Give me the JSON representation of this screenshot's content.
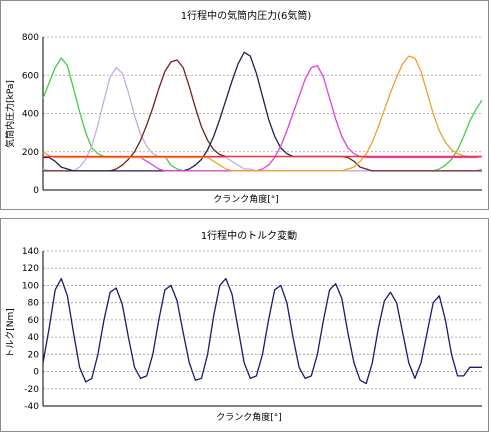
{
  "chart_data": [
    {
      "type": "line",
      "title": "1行程中の気筒内圧力(6気筒)",
      "xlabel": "クランク角度[°]",
      "ylabel": "気筒内圧力[kPa]",
      "ylim": [
        0,
        800
      ],
      "yticks": [
        0,
        200,
        400,
        600,
        800
      ],
      "grid": true,
      "x": [
        0,
        10,
        20,
        30,
        40,
        50,
        60,
        70,
        80,
        90,
        100,
        110,
        120,
        130,
        140,
        150,
        160,
        170,
        180,
        190,
        200,
        210,
        220,
        230,
        240,
        250,
        260,
        270,
        280,
        290,
        300,
        310,
        320,
        330,
        340,
        350,
        360,
        370,
        380,
        390,
        400,
        410,
        420,
        430,
        440,
        450,
        460,
        470,
        480,
        490,
        500,
        510,
        520,
        530,
        540,
        550,
        560,
        570,
        580,
        590,
        600,
        610,
        620,
        630,
        640,
        650,
        660,
        670,
        680,
        690,
        700,
        710,
        720
      ],
      "series": [
        {
          "color": "#40d040",
          "values": [
            480,
            560,
            640,
            690,
            650,
            530,
            410,
            300,
            220,
            190,
            175,
            170,
            170,
            170,
            170,
            170,
            175,
            175,
            175,
            175,
            175,
            130,
            110,
            100,
            100,
            100,
            100,
            100,
            100,
            100,
            100,
            100,
            100,
            100,
            100,
            100,
            100,
            100,
            100,
            100,
            100,
            100,
            100,
            100,
            100,
            100,
            100,
            100,
            100,
            100,
            100,
            100,
            100,
            100,
            100,
            100,
            100,
            100,
            100,
            100,
            100,
            100,
            100,
            100,
            100,
            110,
            130,
            160,
            210,
            280,
            360,
            420,
            470
          ]
        },
        {
          "color": "#c8a8e8",
          "values": [
            110,
            100,
            100,
            100,
            100,
            100,
            120,
            160,
            230,
            340,
            470,
            590,
            640,
            610,
            510,
            390,
            290,
            230,
            190,
            175,
            170,
            170,
            170,
            170,
            170,
            170,
            170,
            170,
            170,
            170,
            170,
            150,
            130,
            110,
            110,
            100,
            100,
            100,
            100,
            100,
            100,
            100,
            100,
            100,
            100,
            100,
            100,
            100,
            100,
            100,
            100,
            100,
            100,
            100,
            100,
            100,
            100,
            100,
            100,
            100,
            100,
            100,
            100,
            100,
            100,
            100,
            100,
            100,
            100,
            100,
            100,
            100,
            110
          ]
        },
        {
          "color": "#702020",
          "values": [
            100,
            100,
            100,
            100,
            100,
            100,
            100,
            100,
            100,
            100,
            100,
            100,
            110,
            130,
            160,
            200,
            260,
            340,
            430,
            530,
            620,
            670,
            680,
            640,
            540,
            430,
            330,
            260,
            210,
            185,
            175,
            175,
            175,
            175,
            175,
            175,
            175,
            175,
            175,
            175,
            175,
            175,
            175,
            175,
            175,
            175,
            175,
            175,
            175,
            175,
            170,
            150,
            120,
            110,
            100,
            100,
            100,
            100,
            100,
            100,
            100,
            100,
            100,
            100,
            100,
            100,
            100,
            100,
            100,
            100,
            100,
            100,
            100
          ]
        },
        {
          "color": "#202050",
          "values": [
            170,
            170,
            150,
            120,
            110,
            100,
            100,
            100,
            100,
            100,
            100,
            100,
            100,
            100,
            100,
            100,
            100,
            100,
            100,
            100,
            100,
            100,
            100,
            100,
            110,
            130,
            160,
            210,
            280,
            370,
            470,
            570,
            660,
            720,
            700,
            610,
            490,
            370,
            280,
            220,
            190,
            175,
            175,
            175,
            175,
            175,
            175,
            175,
            175,
            175,
            175,
            175,
            175,
            175,
            175,
            175,
            175,
            175,
            175,
            175,
            175,
            175,
            175,
            175,
            175,
            175,
            175,
            175,
            175,
            175,
            175,
            175,
            175
          ]
        },
        {
          "color": "#e040e0",
          "values": [
            175,
            175,
            175,
            175,
            175,
            175,
            175,
            175,
            175,
            175,
            175,
            175,
            175,
            175,
            175,
            170,
            170,
            150,
            130,
            110,
            100,
            100,
            100,
            100,
            100,
            100,
            100,
            100,
            100,
            100,
            100,
            100,
            100,
            100,
            100,
            100,
            110,
            130,
            170,
            230,
            310,
            400,
            490,
            580,
            640,
            650,
            590,
            480,
            370,
            280,
            220,
            190,
            175,
            170,
            170,
            170,
            170,
            170,
            170,
            170,
            170,
            170,
            170,
            170,
            170,
            170,
            170,
            170,
            170,
            170,
            170,
            170,
            175
          ]
        },
        {
          "color": "#f0a030",
          "values": [
            200,
            180,
            170,
            170,
            170,
            170,
            170,
            170,
            170,
            170,
            170,
            170,
            170,
            170,
            170,
            170,
            170,
            170,
            170,
            170,
            170,
            170,
            170,
            170,
            170,
            170,
            170,
            170,
            150,
            130,
            110,
            100,
            100,
            100,
            100,
            100,
            100,
            100,
            100,
            100,
            100,
            100,
            100,
            100,
            100,
            100,
            100,
            100,
            100,
            100,
            110,
            120,
            150,
            190,
            250,
            330,
            420,
            510,
            590,
            660,
            700,
            690,
            620,
            510,
            400,
            310,
            250,
            210,
            190,
            180,
            175,
            175,
            175
          ]
        },
        {
          "color": "#ff3030",
          "values": [
            175,
            175,
            175,
            175,
            175,
            175,
            175,
            175,
            175,
            175,
            175,
            175,
            175,
            175,
            175,
            175,
            175,
            175,
            175,
            175,
            175,
            175,
            175,
            175,
            175,
            175,
            175,
            175,
            175,
            175,
            175,
            175,
            175,
            175,
            175,
            175,
            175,
            175,
            175,
            175,
            175,
            175,
            175,
            175,
            175,
            175,
            175,
            175,
            175,
            175,
            175,
            175,
            175,
            175,
            175,
            175,
            175,
            175,
            175,
            175,
            175,
            175,
            175,
            175,
            175,
            175,
            175,
            175,
            175,
            175,
            175,
            175,
            175
          ]
        }
      ]
    },
    {
      "type": "line",
      "title": "1行程中のトルク変動",
      "xlabel": "クランク角度[°]",
      "ylabel": "トルク[Nm]",
      "ylim": [
        -40,
        140
      ],
      "yticks": [
        -40,
        -20,
        0,
        20,
        40,
        60,
        80,
        100,
        120,
        140
      ],
      "grid": true,
      "x": [
        0,
        10,
        20,
        30,
        40,
        50,
        60,
        70,
        80,
        90,
        100,
        110,
        120,
        130,
        140,
        150,
        160,
        170,
        180,
        190,
        200,
        210,
        220,
        230,
        240,
        250,
        260,
        270,
        280,
        290,
        300,
        310,
        320,
        330,
        340,
        350,
        360,
        370,
        380,
        390,
        400,
        410,
        420,
        430,
        440,
        450,
        460,
        470,
        480,
        490,
        500,
        510,
        520,
        530,
        540,
        550,
        560,
        570,
        580,
        590,
        600,
        610,
        620,
        630,
        640,
        650,
        660,
        670,
        680,
        690,
        700,
        710,
        720
      ],
      "series": [
        {
          "color": "#1a1a6e",
          "values": [
            10,
            50,
            95,
            108,
            88,
            45,
            5,
            -12,
            -8,
            20,
            60,
            92,
            97,
            78,
            40,
            5,
            -8,
            -5,
            20,
            60,
            95,
            100,
            82,
            45,
            10,
            -10,
            -8,
            20,
            65,
            100,
            108,
            90,
            50,
            10,
            -8,
            -5,
            20,
            60,
            95,
            100,
            80,
            40,
            5,
            -8,
            -5,
            20,
            60,
            95,
            102,
            85,
            45,
            10,
            -10,
            -14,
            10,
            50,
            82,
            92,
            80,
            45,
            10,
            -8,
            10,
            45,
            80,
            88,
            60,
            20,
            -5,
            -5,
            5,
            5,
            5
          ]
        }
      ]
    }
  ]
}
